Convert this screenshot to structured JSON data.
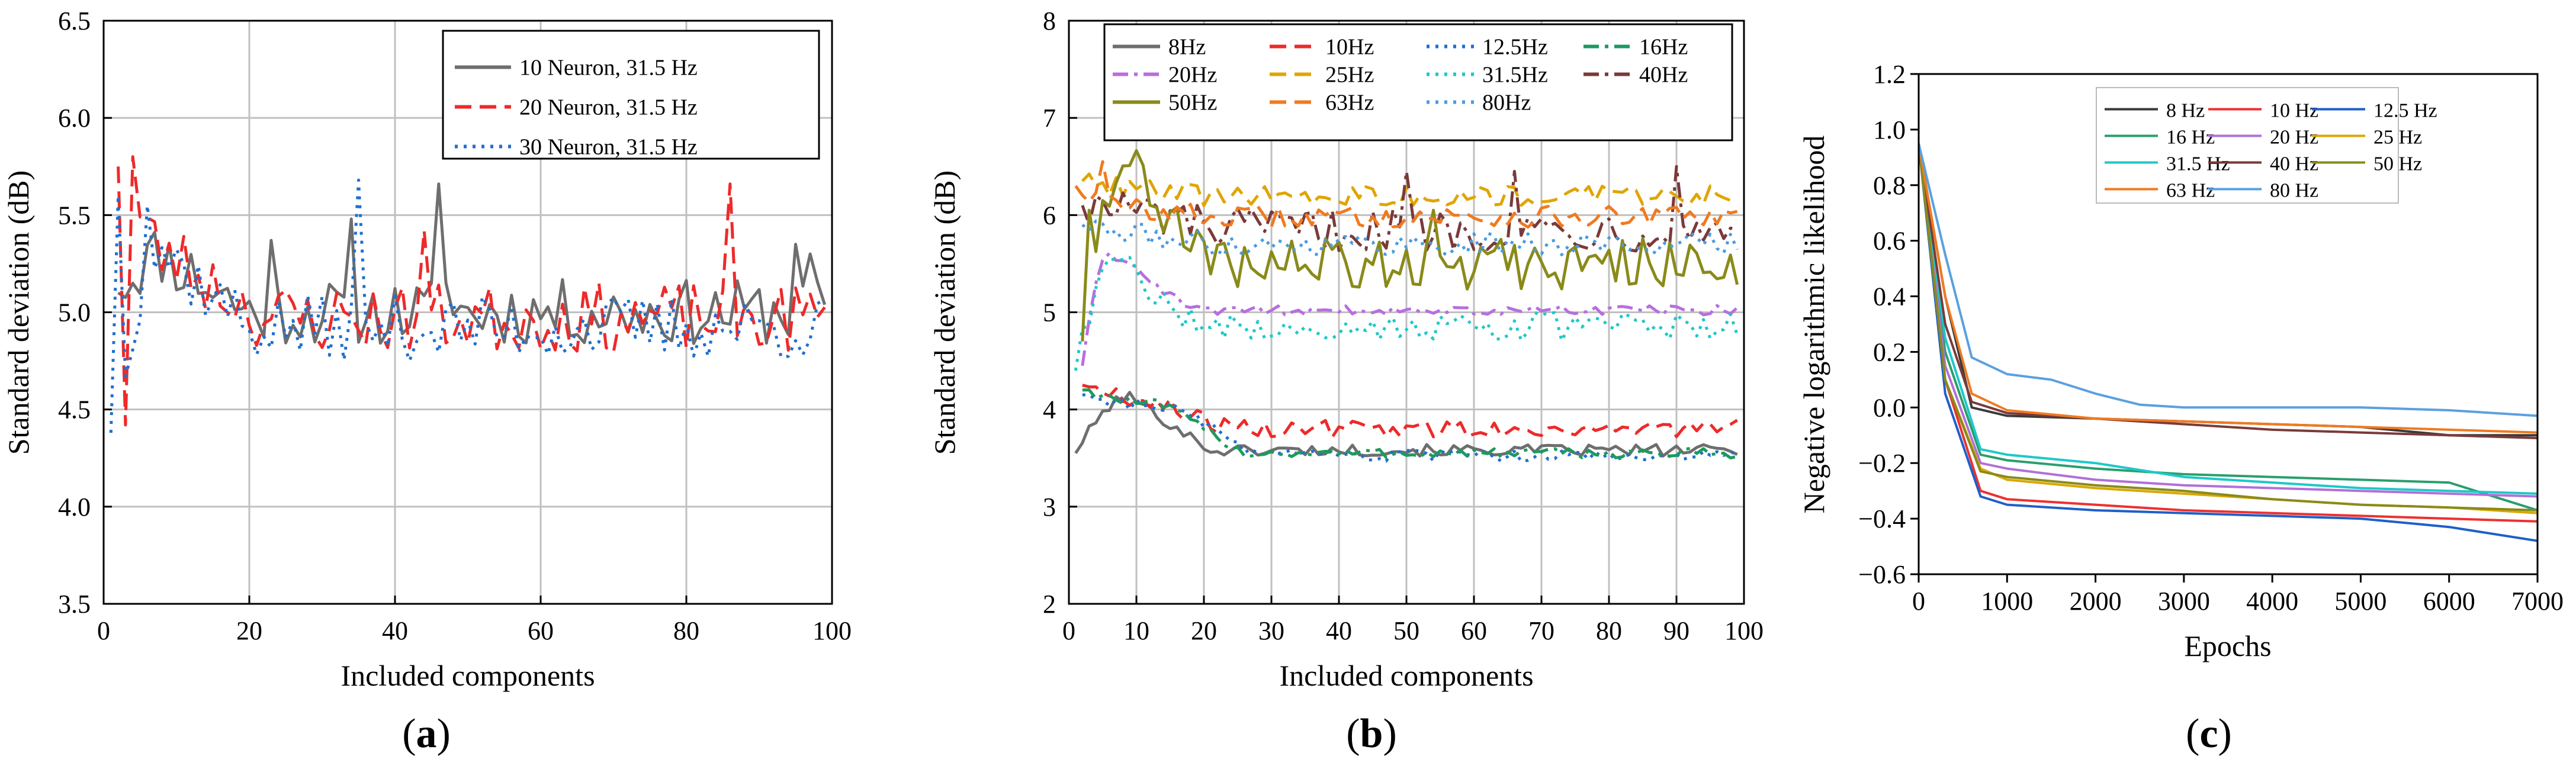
{
  "chart_data": [
    {
      "type": "line",
      "panel_label": "(a)",
      "panel_letter": "a",
      "xlabel": "Included components",
      "ylabel": "Standard deviation (dB)",
      "xlim": [
        0,
        100
      ],
      "ylim": [
        3.5,
        6.5
      ],
      "xticks": [
        0,
        20,
        40,
        60,
        80,
        100
      ],
      "yticks": [
        3.5,
        4.0,
        4.5,
        5.0,
        5.5,
        6.0,
        6.5
      ],
      "ytick_labels": [
        "3.5",
        "4.0",
        "4.5",
        "5.0",
        "5.5",
        "6.0",
        "6.5"
      ],
      "grid": true,
      "legend_position": "top-right",
      "series": [
        {
          "name": "10 Neuron, 31.5 Hz",
          "color": "#6e6e6e",
          "dash": "solid",
          "seed": 11,
          "x0": 2,
          "y0": 5.1,
          "rise": 0.3,
          "riseLen": 6,
          "settle": 5.0,
          "amp": 0.17,
          "spikes": [
            [
              23,
              5.37
            ],
            [
              34,
              5.48
            ],
            [
              46,
              5.66
            ],
            [
              47,
              5.15
            ],
            [
              95,
              5.35
            ],
            [
              97,
              5.3
            ]
          ]
        },
        {
          "name": "20 Neuron, 31.5 Hz",
          "color": "#ee2a2a",
          "dash": "dashed",
          "seed": 23,
          "x0": 2,
          "y0": 5.75,
          "rise": 0.3,
          "riseLen": 8,
          "settle": 4.97,
          "amp": 0.18,
          "spikes": [
            [
              3,
              4.42
            ],
            [
              4,
              5.8
            ],
            [
              44,
              5.42
            ],
            [
              86,
              5.66
            ],
            [
              87,
              4.88
            ]
          ]
        },
        {
          "name": "30 Neuron, 31.5 Hz",
          "color": "#1f6fd0",
          "dash": "dotted",
          "seed": 37,
          "x0": 1,
          "y0": 4.38,
          "rise": 0.4,
          "riseLen": 7,
          "settle": 4.92,
          "amp": 0.17,
          "spikes": [
            [
              2,
              5.6
            ],
            [
              6,
              5.55
            ],
            [
              35,
              5.68
            ],
            [
              36,
              4.95
            ]
          ]
        }
      ]
    },
    {
      "type": "line",
      "panel_label": "(b)",
      "panel_letter": "b",
      "xlabel": "Included components",
      "ylabel": "Standard deviation (dB)",
      "xlim": [
        0,
        100
      ],
      "ylim": [
        2,
        8
      ],
      "xticks": [
        0,
        10,
        20,
        30,
        40,
        50,
        60,
        70,
        80,
        90,
        100
      ],
      "yticks": [
        2,
        3,
        4,
        5,
        6,
        7,
        8
      ],
      "ytick_labels": [
        "2",
        "3",
        "4",
        "5",
        "6",
        "7",
        "8"
      ],
      "grid": true,
      "legend_position": "top",
      "series": [
        {
          "name": "8Hz",
          "color": "#6e6e6e",
          "dash": "solid",
          "seed": 101,
          "x0": 1,
          "y0": 3.55,
          "rise": 0.55,
          "riseLen": 8,
          "settle": 3.58,
          "amp": 0.06,
          "spikes": []
        },
        {
          "name": "10Hz",
          "color": "#ee2a2a",
          "dash": "dashed",
          "seed": 102,
          "x0": 2,
          "y0": 4.25,
          "rise": 0.3,
          "riseLen": 10,
          "settle": 3.8,
          "amp": 0.09,
          "spikes": []
        },
        {
          "name": "12.5Hz",
          "color": "#1f6fd0",
          "dash": "dotted",
          "seed": 103,
          "x0": 2,
          "y0": 4.15,
          "rise": 0.5,
          "riseLen": 14,
          "settle": 3.52,
          "amp": 0.06,
          "spikes": []
        },
        {
          "name": "16Hz",
          "color": "#1e9960",
          "dash": "dashdot",
          "seed": 104,
          "x0": 2,
          "y0": 4.2,
          "rise": 0.5,
          "riseLen": 12,
          "settle": 3.55,
          "amp": 0.05,
          "spikes": []
        },
        {
          "name": "20Hz",
          "color": "#b86ee0",
          "dash": "dashdot",
          "seed": 105,
          "x0": 2,
          "y0": 4.45,
          "rise": 0.6,
          "riseLen": 4,
          "settle": 5.02,
          "amp": 0.05,
          "spikes": []
        },
        {
          "name": "25Hz",
          "color": "#e0a500",
          "dash": "dashed",
          "seed": 106,
          "x0": 2,
          "y0": 6.35,
          "rise": 0.1,
          "riseLen": 6,
          "settle": 6.2,
          "amp": 0.11,
          "spikes": []
        },
        {
          "name": "31.5Hz",
          "color": "#1ec8c8",
          "dash": "dotted",
          "seed": 107,
          "x0": 1,
          "y0": 4.4,
          "rise": 0.7,
          "riseLen": 6,
          "settle": 4.85,
          "amp": 0.15,
          "spikes": []
        },
        {
          "name": "40Hz",
          "color": "#7a3a3a",
          "dash": "dashdot",
          "seed": 108,
          "x0": 2,
          "y0": 6.1,
          "rise": 0.2,
          "riseLen": 8,
          "settle": 5.85,
          "amp": 0.22,
          "spikes": [
            [
              50,
              6.45
            ],
            [
              66,
              6.45
            ],
            [
              90,
              6.5
            ]
          ]
        },
        {
          "name": "50Hz",
          "color": "#8a8a1a",
          "dash": "solid",
          "seed": 109,
          "x0": 2,
          "y0": 4.7,
          "rise": 1.1,
          "riseLen": 6,
          "settle": 5.5,
          "amp": 0.27,
          "spikes": [
            [
              3,
              6.05
            ],
            [
              5,
              6.15
            ],
            [
              54,
              6.05
            ],
            [
              64,
              5.75
            ]
          ]
        },
        {
          "name": "63Hz",
          "color": "#f07a20",
          "dash": "dashed",
          "seed": 110,
          "x0": 1,
          "y0": 6.3,
          "rise": 0.1,
          "riseLen": 8,
          "settle": 5.98,
          "amp": 0.11,
          "spikes": [
            [
              5,
              6.55
            ]
          ]
        },
        {
          "name": "80Hz",
          "color": "#4a9be0",
          "dash": "dotted",
          "seed": 111,
          "x0": 2,
          "y0": 5.9,
          "rise": 0.1,
          "riseLen": 8,
          "settle": 5.7,
          "amp": 0.12,
          "spikes": []
        }
      ]
    },
    {
      "type": "line",
      "panel_label": "(c)",
      "panel_letter": "c",
      "xlabel": "Epochs",
      "ylabel": "Negative logarithmic likelihood",
      "xlim": [
        0,
        7000
      ],
      "ylim": [
        -0.6,
        1.2
      ],
      "xticks": [
        0,
        1000,
        2000,
        3000,
        4000,
        5000,
        6000,
        7000
      ],
      "yticks": [
        -0.6,
        -0.4,
        -0.2,
        0.0,
        0.2,
        0.4,
        0.6,
        0.8,
        1.0,
        1.2
      ],
      "ytick_labels": [
        "−0.6",
        "−0.4",
        "−0.2",
        "0.0",
        "0.2",
        "0.4",
        "0.6",
        "0.8",
        "1.0",
        "1.2"
      ],
      "grid": false,
      "legend_position": "top",
      "series": [
        {
          "name": "8 Hz",
          "color": "#3a3a3a",
          "points": [
            [
              0,
              0.95
            ],
            [
              300,
              0.4
            ],
            [
              600,
              0.0
            ],
            [
              1000,
              -0.03
            ],
            [
              2000,
              -0.04
            ],
            [
              3000,
              -0.05
            ],
            [
              4000,
              -0.06
            ],
            [
              5000,
              -0.07
            ],
            [
              6000,
              -0.1
            ],
            [
              7000,
              -0.1
            ]
          ]
        },
        {
          "name": "10 Hz",
          "color": "#ee3030",
          "points": [
            [
              0,
              0.95
            ],
            [
              300,
              0.1
            ],
            [
              700,
              -0.3
            ],
            [
              1000,
              -0.33
            ],
            [
              2000,
              -0.35
            ],
            [
              3000,
              -0.37
            ],
            [
              4000,
              -0.38
            ],
            [
              5000,
              -0.39
            ],
            [
              6000,
              -0.4
            ],
            [
              7000,
              -0.41
            ]
          ]
        },
        {
          "name": "12.5 Hz",
          "color": "#1f5fc8",
          "points": [
            [
              0,
              0.95
            ],
            [
              300,
              0.05
            ],
            [
              700,
              -0.32
            ],
            [
              1000,
              -0.35
            ],
            [
              2000,
              -0.37
            ],
            [
              3000,
              -0.38
            ],
            [
              4000,
              -0.39
            ],
            [
              5000,
              -0.4
            ],
            [
              6000,
              -0.43
            ],
            [
              7000,
              -0.48
            ]
          ]
        },
        {
          "name": "16 Hz",
          "color": "#2a9e6e",
          "points": [
            [
              0,
              0.95
            ],
            [
              300,
              0.2
            ],
            [
              700,
              -0.17
            ],
            [
              1000,
              -0.19
            ],
            [
              2000,
              -0.22
            ],
            [
              3000,
              -0.24
            ],
            [
              4000,
              -0.25
            ],
            [
              5000,
              -0.26
            ],
            [
              6000,
              -0.27
            ],
            [
              7000,
              -0.37
            ]
          ]
        },
        {
          "name": "20 Hz",
          "color": "#b070d8",
          "points": [
            [
              0,
              0.95
            ],
            [
              300,
              0.15
            ],
            [
              700,
              -0.2
            ],
            [
              1000,
              -0.22
            ],
            [
              2000,
              -0.26
            ],
            [
              3000,
              -0.28
            ],
            [
              4000,
              -0.29
            ],
            [
              5000,
              -0.3
            ],
            [
              6000,
              -0.31
            ],
            [
              7000,
              -0.32
            ]
          ]
        },
        {
          "name": "25 Hz",
          "color": "#d9a800",
          "points": [
            [
              0,
              0.95
            ],
            [
              300,
              0.1
            ],
            [
              700,
              -0.22
            ],
            [
              1000,
              -0.26
            ],
            [
              2000,
              -0.29
            ],
            [
              3000,
              -0.31
            ],
            [
              4000,
              -0.33
            ],
            [
              5000,
              -0.35
            ],
            [
              6000,
              -0.36
            ],
            [
              7000,
              -0.38
            ]
          ]
        },
        {
          "name": "31.5 Hz",
          "color": "#1ec8c8",
          "points": [
            [
              0,
              0.95
            ],
            [
              300,
              0.25
            ],
            [
              700,
              -0.15
            ],
            [
              1000,
              -0.17
            ],
            [
              2000,
              -0.2
            ],
            [
              3000,
              -0.25
            ],
            [
              4000,
              -0.27
            ],
            [
              5000,
              -0.29
            ],
            [
              6000,
              -0.3
            ],
            [
              7000,
              -0.31
            ]
          ]
        },
        {
          "name": "40 Hz",
          "color": "#7a3a3a",
          "points": [
            [
              0,
              0.95
            ],
            [
              300,
              0.3
            ],
            [
              600,
              0.02
            ],
            [
              1000,
              -0.02
            ],
            [
              2000,
              -0.04
            ],
            [
              3000,
              -0.06
            ],
            [
              4000,
              -0.08
            ],
            [
              5000,
              -0.09
            ],
            [
              6000,
              -0.1
            ],
            [
              7000,
              -0.11
            ]
          ]
        },
        {
          "name": "50 Hz",
          "color": "#8a8a1a",
          "points": [
            [
              0,
              0.95
            ],
            [
              300,
              0.1
            ],
            [
              700,
              -0.23
            ],
            [
              1000,
              -0.25
            ],
            [
              2000,
              -0.28
            ],
            [
              3000,
              -0.3
            ],
            [
              4000,
              -0.33
            ],
            [
              5000,
              -0.35
            ],
            [
              6000,
              -0.36
            ],
            [
              7000,
              -0.37
            ]
          ]
        },
        {
          "name": "63 Hz",
          "color": "#f07a20",
          "points": [
            [
              0,
              0.95
            ],
            [
              300,
              0.4
            ],
            [
              600,
              0.05
            ],
            [
              1000,
              -0.01
            ],
            [
              2000,
              -0.04
            ],
            [
              3000,
              -0.05
            ],
            [
              4000,
              -0.06
            ],
            [
              5000,
              -0.07
            ],
            [
              6000,
              -0.08
            ],
            [
              7000,
              -0.09
            ]
          ]
        },
        {
          "name": "80 Hz",
          "color": "#5aa0e0",
          "points": [
            [
              0,
              0.95
            ],
            [
              300,
              0.55
            ],
            [
              600,
              0.18
            ],
            [
              1000,
              0.12
            ],
            [
              1500,
              0.1
            ],
            [
              2000,
              0.05
            ],
            [
              2500,
              0.01
            ],
            [
              3000,
              0.0
            ],
            [
              4000,
              0.0
            ],
            [
              5000,
              0.0
            ],
            [
              6000,
              -0.01
            ],
            [
              7000,
              -0.03
            ]
          ]
        }
      ]
    }
  ]
}
